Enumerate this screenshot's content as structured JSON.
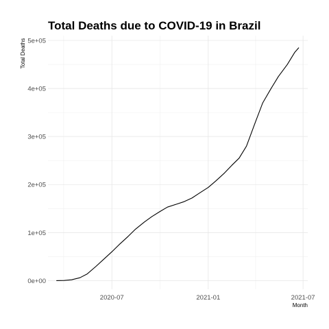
{
  "chart_data": {
    "type": "line",
    "title": "Total Deaths due to COVID-19 in Brazil",
    "xlabel": "Month",
    "ylabel": "Total Deaths",
    "x_axis_type": "date",
    "xlim": [
      "2020-03-01",
      "2021-07-10"
    ],
    "ylim": [
      -18000,
      510000
    ],
    "x_ticks": [
      {
        "value": "2020-07-01",
        "label": "2020-07"
      },
      {
        "value": "2021-01-01",
        "label": "2021-01"
      },
      {
        "value": "2021-07-01",
        "label": "2021-07"
      }
    ],
    "y_ticks": [
      {
        "value": 0,
        "label": "0e+00"
      },
      {
        "value": 100000,
        "label": "1e+05"
      },
      {
        "value": 200000,
        "label": "2e+05"
      },
      {
        "value": 300000,
        "label": "3e+05"
      },
      {
        "value": 400000,
        "label": "4e+05"
      },
      {
        "value": 500000,
        "label": "5e+05"
      }
    ],
    "grid": true,
    "legend": "none",
    "line_color": "#000000",
    "series": [
      {
        "x": [
          "2020-03-17",
          "2020-04-01",
          "2020-04-15",
          "2020-05-01",
          "2020-05-15",
          "2020-06-01",
          "2020-06-15",
          "2020-07-01",
          "2020-07-15",
          "2020-08-01",
          "2020-08-15",
          "2020-09-01",
          "2020-09-15",
          "2020-10-01",
          "2020-10-15",
          "2020-11-01",
          "2020-11-15",
          "2020-12-01",
          "2020-12-15",
          "2021-01-01",
          "2021-01-15",
          "2021-02-01",
          "2021-02-15",
          "2021-03-01",
          "2021-03-15",
          "2021-04-01",
          "2021-04-15",
          "2021-05-01",
          "2021-05-15",
          "2021-06-01",
          "2021-06-15",
          "2021-06-23"
        ],
        "y": [
          0,
          240,
          1700,
          6000,
          14000,
          30000,
          44000,
          60000,
          75000,
          92000,
          107000,
          122000,
          133000,
          144000,
          153000,
          159000,
          164000,
          172000,
          182000,
          194000,
          207000,
          224000,
          240000,
          255000,
          280000,
          330000,
          370000,
          400000,
          425000,
          450000,
          475000,
          485000
        ]
      }
    ]
  }
}
